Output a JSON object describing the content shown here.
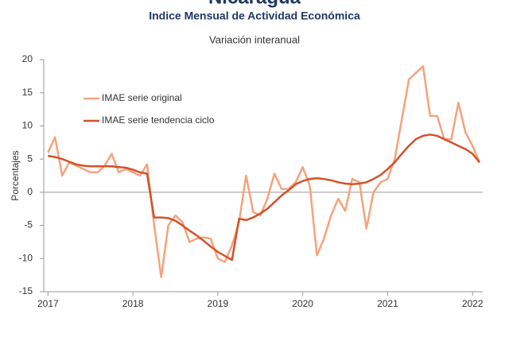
{
  "chart_data": {
    "type": "line",
    "title": "Nicaragua",
    "subtitle": "Indice Mensual de  Actividad Económica",
    "subtitle2": "Variación interanual",
    "y_label": "Porcentajes",
    "x": [
      2017,
      2017.083,
      2017.167,
      2017.25,
      2017.333,
      2017.417,
      2017.5,
      2017.583,
      2017.667,
      2017.75,
      2017.833,
      2017.917,
      2018,
      2018.083,
      2018.167,
      2018.25,
      2018.333,
      2018.417,
      2018.5,
      2018.583,
      2018.667,
      2018.75,
      2018.833,
      2018.917,
      2019,
      2019.083,
      2019.167,
      2019.25,
      2019.333,
      2019.417,
      2019.5,
      2019.583,
      2019.667,
      2019.75,
      2019.833,
      2019.917,
      2020,
      2020.083,
      2020.167,
      2020.25,
      2020.333,
      2020.417,
      2020.5,
      2020.583,
      2020.667,
      2020.75,
      2020.833,
      2020.917,
      2021,
      2021.083,
      2021.167,
      2021.25,
      2021.333,
      2021.417,
      2021.5,
      2021.583,
      2021.667,
      2021.75,
      2021.833,
      2021.917,
      2022,
      2022.083
    ],
    "series": [
      {
        "name": "IMAE serie original",
        "color": "#f7a27c",
        "values": [
          6,
          8.3,
          2.5,
          4.5,
          4,
          3.5,
          3,
          3,
          4,
          5.8,
          3,
          3.5,
          3,
          2.5,
          4.2,
          -5,
          -12.8,
          -5,
          -3.5,
          -4.5,
          -7.5,
          -7,
          -6.8,
          -7,
          -10,
          -10.5,
          -8,
          -4.5,
          2.5,
          -3,
          -3.5,
          -1,
          2.8,
          0.5,
          0.5,
          1.5,
          3.8,
          1,
          -9.5,
          -7,
          -3.5,
          -1,
          -2.8,
          2,
          1.5,
          -5.5,
          0,
          1.5,
          2,
          5,
          11,
          17,
          18,
          19,
          11.5,
          11.5,
          8,
          8,
          13.5,
          9,
          7,
          4.5
        ]
      },
      {
        "name": "IMAE serie  tendencia ciclo",
        "color": "#d2522a",
        "values": [
          5.5,
          5.3,
          5,
          4.6,
          4.2,
          4,
          3.9,
          3.9,
          3.9,
          3.9,
          3.8,
          3.7,
          3.4,
          3,
          2.8,
          -3.8,
          -3.8,
          -3.9,
          -4.3,
          -5,
          -5.8,
          -6.5,
          -7.3,
          -8.2,
          -9,
          -9.6,
          -10.2,
          -4,
          -4.2,
          -3.8,
          -3.2,
          -2.5,
          -1.5,
          -0.5,
          0.3,
          1.2,
          1.7,
          2,
          2.1,
          2,
          1.8,
          1.5,
          1.3,
          1.2,
          1.3,
          1.5,
          2,
          2.6,
          3.5,
          4.5,
          5.8,
          7,
          8,
          8.5,
          8.7,
          8.5,
          8,
          7.5,
          7,
          6.5,
          5.8,
          4.5
        ]
      }
    ],
    "xlim": [
      2016.95,
      2022.12
    ],
    "xticks": [
      2017,
      2018,
      2019,
      2020,
      2021,
      2022
    ],
    "ylim": [
      -15,
      20
    ],
    "yticks": [
      -15,
      -10,
      -5,
      0,
      5,
      10,
      15,
      20
    ],
    "grid": false,
    "legend": "upper left"
  }
}
